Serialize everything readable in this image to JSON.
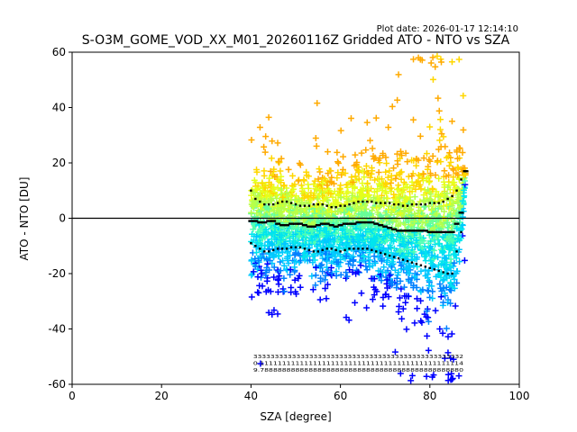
{
  "chart_data": {
    "type": "scatter",
    "title": "S-O3M_GOME_VOD_XX_M01_20260116Z Gridded ATO - NTO vs SZA",
    "plot_date": "Plot date: 2026-01-17 12:14:10",
    "xlabel": "SZA [degree]",
    "ylabel": "ATO - NTO [DU]",
    "xlim": [
      0,
      100
    ],
    "ylim": [
      -60,
      60
    ],
    "xticks": [
      0,
      20,
      40,
      60,
      80,
      100
    ],
    "yticks": [
      -60,
      -40,
      -20,
      0,
      20,
      40,
      60
    ],
    "reference_line_y": 0,
    "grid": false,
    "legend": "none",
    "marker": "plus",
    "point_colors": [
      "#0000ff",
      "#0080ff",
      "#00c8ff",
      "#00e5ee",
      "#4dffb3",
      "#66ff99",
      "#b3ff4d",
      "#e5ff1a",
      "#ffd700",
      "#ffaa00"
    ],
    "sza_bins": [
      40,
      41,
      42,
      43,
      44,
      45,
      46,
      47,
      48,
      49,
      50,
      51,
      52,
      53,
      54,
      55,
      56,
      57,
      58,
      59,
      60,
      61,
      62,
      63,
      64,
      65,
      66,
      67,
      68,
      69,
      70,
      71,
      72,
      73,
      74,
      75,
      76,
      77,
      78,
      79,
      80,
      81,
      82,
      83,
      84,
      85,
      86,
      87,
      88
    ],
    "mean": [
      -1,
      -1,
      -1.5,
      -1.5,
      -1,
      -1,
      -2,
      -2.5,
      -2.5,
      -2,
      -2,
      -2,
      -2.5,
      -3,
      -3,
      -2.5,
      -2,
      -2,
      -2.5,
      -3,
      -2.5,
      -2,
      -2,
      -2,
      -1.5,
      -1.5,
      -1.5,
      -1.5,
      -2,
      -2.5,
      -3,
      -3.5,
      -4,
      -4.5,
      -4.5,
      -4.5,
      -4.5,
      -4.5,
      -4.5,
      -4.5,
      -5,
      -5,
      -5,
      -5,
      -5,
      -5,
      -2,
      2,
      17
    ],
    "upper": [
      10,
      7,
      6,
      5,
      5,
      5,
      5.5,
      6,
      6,
      5.5,
      5,
      4.5,
      4.5,
      4.5,
      5,
      5,
      5,
      4.5,
      4,
      4,
      4.5,
      4.5,
      5,
      5.5,
      6,
      6,
      6,
      6,
      5.5,
      5.5,
      5.5,
      5.5,
      5,
      5,
      4.5,
      4.5,
      5,
      5,
      5,
      5,
      5.5,
      5.5,
      5.5,
      6,
      7,
      8,
      10,
      14,
      17
    ],
    "lower": [
      -9,
      -10,
      -11,
      -12,
      -12,
      -11.5,
      -11,
      -11,
      -11,
      -10.5,
      -10.5,
      -10.5,
      -11,
      -11.5,
      -12,
      -12,
      -11.5,
      -11,
      -11,
      -11.5,
      -12,
      -11.5,
      -11,
      -11,
      -11,
      -11,
      -11,
      -11.5,
      -12,
      -12.5,
      -13,
      -13.5,
      -14,
      -14.5,
      -15,
      -15.5,
      -16,
      -16.5,
      -17,
      -17.5,
      -18,
      -18.5,
      -19,
      -19.5,
      -20,
      -20,
      -12,
      -5,
      17
    ],
    "bin_stat_rows": [
      "3333333333333333333333333333333333333333333333332",
      "0.1111111111111111111111111111111111111111111114",
      "9.7888888888888888888888888888888888888888888880"
    ]
  }
}
